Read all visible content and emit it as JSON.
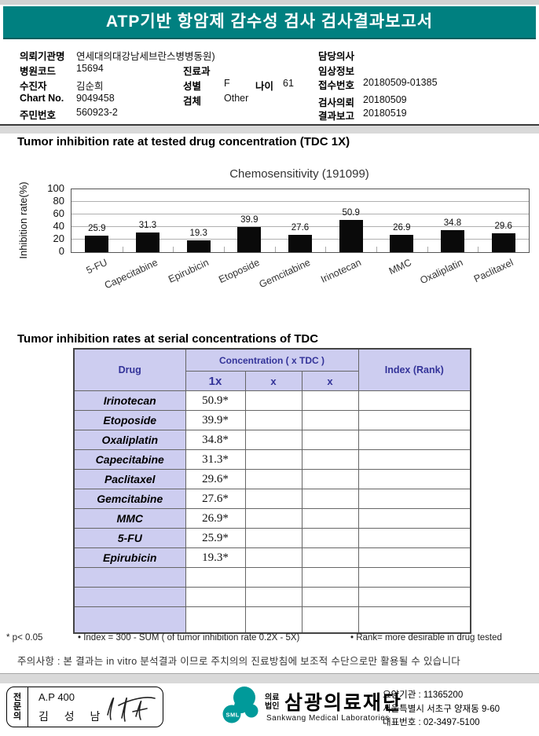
{
  "report": {
    "title": "ATP기반 항암제 감수성 검사 검사결과보고서"
  },
  "info": {
    "org_label": "의뢰기관명",
    "org": "연세대의대강남세브란스병병동원)",
    "hospital_code_label": "병원코드",
    "hospital_code": "15694",
    "dept_label": "진료과",
    "dept": "",
    "patient_label": "수진자",
    "patient": "김순희",
    "sex_label": "성별",
    "sex": "F",
    "age_label": "나이",
    "age": "61",
    "chart_no_label": "Chart No.",
    "chart_no": "9049458",
    "specimen_label": "검체",
    "specimen": "Other",
    "resident_no_label": "주민번호",
    "resident_no": "560923-2",
    "doctor_label": "담당의사",
    "doctor": "",
    "clinical_label": "임상정보",
    "clinical": "",
    "receipt_label": "접수번호",
    "receipt_no": "20180509-01385",
    "request_label": "검사의뢰",
    "request_date": "20180509",
    "report_label": "결과보고",
    "report_date": "20180519"
  },
  "sections": {
    "chart_section_title": "Tumor inhibition rate at tested drug concentration (TDC 1X)",
    "table_section_title": "Tumor inhibition rates at serial concentrations of TDC"
  },
  "chart_data": {
    "type": "bar",
    "title": "Chemosensitivity (191099)",
    "ylabel": "Inhibition rate(%)",
    "categories": [
      "5-FU",
      "Capecitabine",
      "Epirubicin",
      "Etoposide",
      "Gemcitabine",
      "Irinotecan",
      "MMC",
      "Oxaliplatin",
      "Paclitaxel"
    ],
    "values": [
      25.9,
      31.3,
      19.3,
      39.9,
      27.6,
      50.9,
      26.9,
      34.8,
      29.6
    ],
    "ylim": [
      0,
      100
    ],
    "yticks": [
      0,
      20,
      40,
      60,
      80,
      100
    ],
    "grid": true,
    "bar_color": "#0a0a0a"
  },
  "table": {
    "headers": {
      "drug": "Drug",
      "concentration": "Concentration ( x TDC )",
      "sub": [
        "1x",
        "x",
        "x"
      ],
      "index": "Index (Rank)"
    },
    "rows": [
      {
        "drug": "Irinotecan",
        "values": [
          "50.9*",
          "",
          ""
        ],
        "index": ""
      },
      {
        "drug": "Etoposide",
        "values": [
          "39.9*",
          "",
          ""
        ],
        "index": ""
      },
      {
        "drug": "Oxaliplatin",
        "values": [
          "34.8*",
          "",
          ""
        ],
        "index": ""
      },
      {
        "drug": "Capecitabine",
        "values": [
          "31.3*",
          "",
          ""
        ],
        "index": ""
      },
      {
        "drug": "Paclitaxel",
        "values": [
          "29.6*",
          "",
          ""
        ],
        "index": ""
      },
      {
        "drug": "Gemcitabine",
        "values": [
          "27.6*",
          "",
          ""
        ],
        "index": ""
      },
      {
        "drug": "MMC",
        "values": [
          "26.9*",
          "",
          ""
        ],
        "index": ""
      },
      {
        "drug": "5-FU",
        "values": [
          "25.9*",
          "",
          ""
        ],
        "index": ""
      },
      {
        "drug": "Epirubicin",
        "values": [
          "19.3*",
          "",
          ""
        ],
        "index": ""
      }
    ],
    "empty_row_count": 3
  },
  "footnotes": [
    "* p< 0.05",
    "• Index = 300 - SUM ( of tumor inhibition rate 0.2X  -  5X)",
    "• Rank= more desirable in drug tested"
  ],
  "notice": "주의사항 : 본 결과는 in vitro 분석결과 이므로 주치의의 진료방침에 보조적 수단으로만 활용될 수 있습니다",
  "footer": {
    "specialist_label": "전문의",
    "specialist_code": "A.P 400",
    "specialist_name": "김 성 남",
    "logo_text": "SML",
    "org_type_line1": "의료",
    "org_type_line2": "법인",
    "company_name": "삼광의료재단",
    "company_name_en": "Sankwang Medical Laboratories",
    "care_org_no": "요양기관 : 11365200",
    "address": "서울특별시 서초구 양재동 9-60",
    "phone": "대표번호 : 02-3497-5100"
  },
  "colors": {
    "banner_teal": "#008080",
    "table_header_lavender": "#cdcdf0",
    "table_header_text_navy": "#333399",
    "logo_teal": "#009a9a",
    "bar_black": "#0a0a0a"
  }
}
